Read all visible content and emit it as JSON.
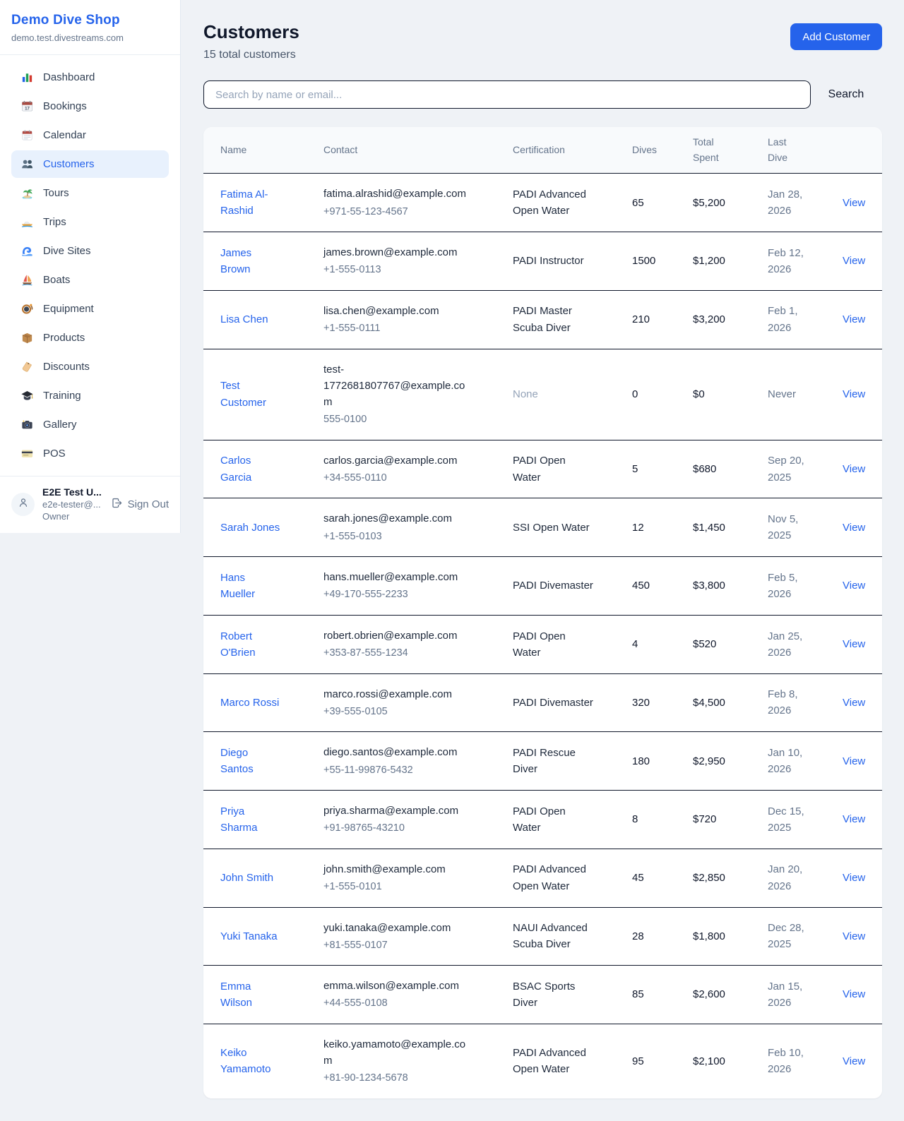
{
  "theme": {
    "accent": "#2563eb",
    "active_nav_bg": "#e8f1fd",
    "link_color": "#2563eb",
    "page_bg": "#eff2f6"
  },
  "sidebar": {
    "title": "Demo Dive Shop",
    "subdomain": "demo.test.divestreams.com",
    "nav": [
      {
        "label": "Dashboard",
        "icon": "bar-chart-icon",
        "active": false
      },
      {
        "label": "Bookings",
        "icon": "calendar-date-icon",
        "active": false
      },
      {
        "label": "Calendar",
        "icon": "tear-off-calendar-icon",
        "active": false
      },
      {
        "label": "Customers",
        "icon": "people-icon",
        "active": true
      },
      {
        "label": "Tours",
        "icon": "island-icon",
        "active": false
      },
      {
        "label": "Trips",
        "icon": "speedboat-icon",
        "active": false
      },
      {
        "label": "Dive Sites",
        "icon": "wave-icon",
        "active": false
      },
      {
        "label": "Boats",
        "icon": "sailboat-icon",
        "active": false
      },
      {
        "label": "Equipment",
        "icon": "diving-mask-icon",
        "active": false
      },
      {
        "label": "Products",
        "icon": "package-icon",
        "active": false
      },
      {
        "label": "Discounts",
        "icon": "tag-icon",
        "active": false
      },
      {
        "label": "Training",
        "icon": "graduation-cap-icon",
        "active": false
      },
      {
        "label": "Gallery",
        "icon": "camera-icon",
        "active": false
      },
      {
        "label": "POS",
        "icon": "credit-card-icon",
        "active": false
      }
    ],
    "user": {
      "name": "E2E Test U...",
      "email": "e2e-tester@...",
      "role": "Owner",
      "sign_out_label": "Sign Out"
    }
  },
  "header": {
    "title": "Customers",
    "subtitle": "15 total customers",
    "add_button_label": "Add Customer"
  },
  "search": {
    "placeholder": "Search by name or email...",
    "button_label": "Search"
  },
  "table": {
    "columns": [
      "Name",
      "Contact",
      "Certification",
      "Dives",
      "Total Spent",
      "Last Dive",
      ""
    ],
    "view_label": "View",
    "rows": [
      {
        "name": "Fatima Al-Rashid",
        "email": "fatima.alrashid@example.com",
        "phone": "+971-55-123-4567",
        "certification": "PADI Advanced Open Water",
        "dives": "65",
        "total_spent": "$5,200",
        "last_dive": "Jan 28, 2026"
      },
      {
        "name": "James Brown",
        "email": "james.brown@example.com",
        "phone": "+1-555-0113",
        "certification": "PADI Instructor",
        "dives": "1500",
        "total_spent": "$1,200",
        "last_dive": "Feb 12, 2026"
      },
      {
        "name": "Lisa Chen",
        "email": "lisa.chen@example.com",
        "phone": "+1-555-0111",
        "certification": "PADI Master Scuba Diver",
        "dives": "210",
        "total_spent": "$3,200",
        "last_dive": "Feb 1, 2026"
      },
      {
        "name": "Test Customer",
        "email": "test-1772681807767@example.com",
        "phone": "555-0100",
        "certification": "None",
        "dives": "0",
        "total_spent": "$0",
        "last_dive": "Never"
      },
      {
        "name": "Carlos Garcia",
        "email": "carlos.garcia@example.com",
        "phone": "+34-555-0110",
        "certification": "PADI Open Water",
        "dives": "5",
        "total_spent": "$680",
        "last_dive": "Sep 20, 2025"
      },
      {
        "name": "Sarah Jones",
        "email": "sarah.jones@example.com",
        "phone": "+1-555-0103",
        "certification": "SSI Open Water",
        "dives": "12",
        "total_spent": "$1,450",
        "last_dive": "Nov 5, 2025"
      },
      {
        "name": "Hans Mueller",
        "email": "hans.mueller@example.com",
        "phone": "+49-170-555-2233",
        "certification": "PADI Divemaster",
        "dives": "450",
        "total_spent": "$3,800",
        "last_dive": "Feb 5, 2026"
      },
      {
        "name": "Robert O'Brien",
        "email": "robert.obrien@example.com",
        "phone": "+353-87-555-1234",
        "certification": "PADI Open Water",
        "dives": "4",
        "total_spent": "$520",
        "last_dive": "Jan 25, 2026"
      },
      {
        "name": "Marco Rossi",
        "email": "marco.rossi@example.com",
        "phone": "+39-555-0105",
        "certification": "PADI Divemaster",
        "dives": "320",
        "total_spent": "$4,500",
        "last_dive": "Feb 8, 2026"
      },
      {
        "name": "Diego Santos",
        "email": "diego.santos@example.com",
        "phone": "+55-11-99876-5432",
        "certification": "PADI Rescue Diver",
        "dives": "180",
        "total_spent": "$2,950",
        "last_dive": "Jan 10, 2026"
      },
      {
        "name": "Priya Sharma",
        "email": "priya.sharma@example.com",
        "phone": "+91-98765-43210",
        "certification": "PADI Open Water",
        "dives": "8",
        "total_spent": "$720",
        "last_dive": "Dec 15, 2025"
      },
      {
        "name": "John Smith",
        "email": "john.smith@example.com",
        "phone": "+1-555-0101",
        "certification": "PADI Advanced Open Water",
        "dives": "45",
        "total_spent": "$2,850",
        "last_dive": "Jan 20, 2026"
      },
      {
        "name": "Yuki Tanaka",
        "email": "yuki.tanaka@example.com",
        "phone": "+81-555-0107",
        "certification": "NAUI Advanced Scuba Diver",
        "dives": "28",
        "total_spent": "$1,800",
        "last_dive": "Dec 28, 2025"
      },
      {
        "name": "Emma Wilson",
        "email": "emma.wilson@example.com",
        "phone": "+44-555-0108",
        "certification": "BSAC Sports Diver",
        "dives": "85",
        "total_spent": "$2,600",
        "last_dive": "Jan 15, 2026"
      },
      {
        "name": "Keiko Yamamoto",
        "email": "keiko.yamamoto@example.com",
        "phone": "+81-90-1234-5678",
        "certification": "PADI Advanced Open Water",
        "dives": "95",
        "total_spent": "$2,100",
        "last_dive": "Feb 10, 2026"
      }
    ]
  }
}
